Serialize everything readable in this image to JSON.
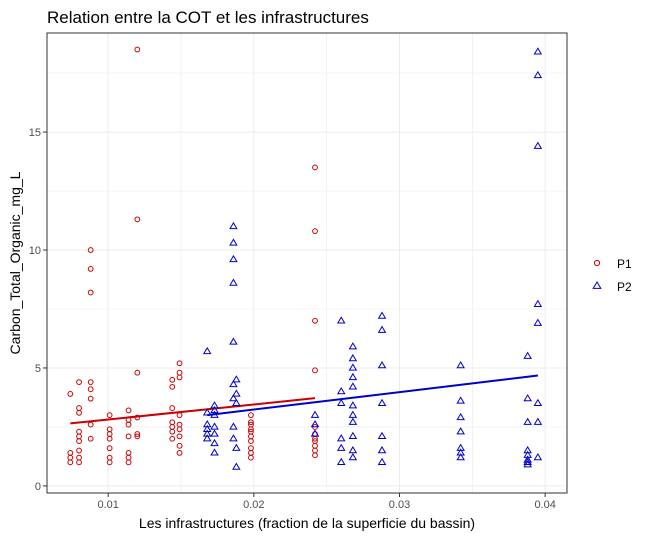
{
  "chart_data": {
    "type": "scatter",
    "title": "Relation entre la COT et les infrastructures",
    "xlabel": "Les infrastructures (fraction de la superficie du bassin)",
    "ylabel": "Carbon_Total_Organic_mg_L",
    "xlim": [
      0.0058,
      0.0415
    ],
    "ylim": [
      -0.3,
      19.2
    ],
    "x_ticks": [
      0.01,
      0.02,
      0.03,
      0.04
    ],
    "x_tick_labels": [
      "0.01",
      "0.02",
      "0.03",
      "0.04"
    ],
    "y_ticks": [
      0,
      5,
      10,
      15
    ],
    "y_tick_labels": [
      "0",
      "5",
      "10",
      "15"
    ],
    "grid": true,
    "legend_position": "right",
    "series": [
      {
        "name": "P1",
        "marker": "circle",
        "color": "#cc0000",
        "points": [
          [
            0.0074,
            1.0
          ],
          [
            0.0074,
            1.2
          ],
          [
            0.0074,
            1.4
          ],
          [
            0.0074,
            3.9
          ],
          [
            0.008,
            1.0
          ],
          [
            0.008,
            1.2
          ],
          [
            0.008,
            1.5
          ],
          [
            0.008,
            1.9
          ],
          [
            0.008,
            2.1
          ],
          [
            0.008,
            2.3
          ],
          [
            0.008,
            3.1
          ],
          [
            0.008,
            3.3
          ],
          [
            0.008,
            4.4
          ],
          [
            0.0088,
            2.0
          ],
          [
            0.0088,
            2.6
          ],
          [
            0.0088,
            3.7
          ],
          [
            0.0088,
            4.1
          ],
          [
            0.0088,
            4.4
          ],
          [
            0.0088,
            8.2
          ],
          [
            0.0088,
            9.2
          ],
          [
            0.0088,
            10.0
          ],
          [
            0.0101,
            1.0
          ],
          [
            0.0101,
            1.2
          ],
          [
            0.0101,
            1.6
          ],
          [
            0.0101,
            2.0
          ],
          [
            0.0101,
            2.2
          ],
          [
            0.0101,
            2.4
          ],
          [
            0.0101,
            3.0
          ],
          [
            0.0114,
            1.0
          ],
          [
            0.0114,
            1.2
          ],
          [
            0.0114,
            1.4
          ],
          [
            0.0114,
            2.1
          ],
          [
            0.0114,
            2.6
          ],
          [
            0.0114,
            2.8
          ],
          [
            0.0114,
            3.2
          ],
          [
            0.012,
            2.1
          ],
          [
            0.012,
            2.2
          ],
          [
            0.012,
            2.9
          ],
          [
            0.012,
            4.8
          ],
          [
            0.012,
            11.3
          ],
          [
            0.012,
            18.5
          ],
          [
            0.0144,
            2.0
          ],
          [
            0.0144,
            2.3
          ],
          [
            0.0144,
            2.5
          ],
          [
            0.0144,
            2.7
          ],
          [
            0.0144,
            3.3
          ],
          [
            0.0144,
            4.2
          ],
          [
            0.0144,
            4.5
          ],
          [
            0.0149,
            1.4
          ],
          [
            0.0149,
            1.7
          ],
          [
            0.0149,
            2.1
          ],
          [
            0.0149,
            2.4
          ],
          [
            0.0149,
            2.6
          ],
          [
            0.0149,
            3.0
          ],
          [
            0.0149,
            4.6
          ],
          [
            0.0149,
            4.8
          ],
          [
            0.0149,
            5.2
          ],
          [
            0.0198,
            1.2
          ],
          [
            0.0198,
            1.4
          ],
          [
            0.0198,
            1.6
          ],
          [
            0.0198,
            1.9
          ],
          [
            0.0198,
            2.1
          ],
          [
            0.0198,
            2.3
          ],
          [
            0.0198,
            2.4
          ],
          [
            0.0198,
            2.6
          ],
          [
            0.0198,
            2.7
          ],
          [
            0.0198,
            3.0
          ],
          [
            0.0242,
            1.3
          ],
          [
            0.0242,
            1.5
          ],
          [
            0.0242,
            1.7
          ],
          [
            0.0242,
            1.9
          ],
          [
            0.0242,
            2.0
          ],
          [
            0.0242,
            2.2
          ],
          [
            0.0242,
            2.5
          ],
          [
            0.0242,
            4.9
          ],
          [
            0.0242,
            7.0
          ],
          [
            0.0242,
            10.8
          ],
          [
            0.0242,
            13.5
          ]
        ],
        "trend": [
          [
            0.0074,
            2.65
          ],
          [
            0.0242,
            3.72
          ]
        ]
      },
      {
        "name": "P2",
        "marker": "triangle",
        "color": "#0000cc",
        "points": [
          [
            0.0168,
            2.0
          ],
          [
            0.0168,
            2.2
          ],
          [
            0.0168,
            2.4
          ],
          [
            0.0168,
            2.6
          ],
          [
            0.0168,
            3.1
          ],
          [
            0.0168,
            5.7
          ],
          [
            0.0173,
            1.4
          ],
          [
            0.0173,
            1.8
          ],
          [
            0.0173,
            2.2
          ],
          [
            0.0173,
            2.5
          ],
          [
            0.0173,
            3.0
          ],
          [
            0.0173,
            3.2
          ],
          [
            0.0173,
            3.4
          ],
          [
            0.0186,
            2.0
          ],
          [
            0.0186,
            2.5
          ],
          [
            0.0186,
            3.7
          ],
          [
            0.0186,
            4.3
          ],
          [
            0.0186,
            6.1
          ],
          [
            0.0186,
            8.6
          ],
          [
            0.0186,
            9.6
          ],
          [
            0.0186,
            10.3
          ],
          [
            0.0186,
            11.0
          ],
          [
            0.0188,
            0.8
          ],
          [
            0.0188,
            1.6
          ],
          [
            0.0188,
            3.5
          ],
          [
            0.0188,
            3.9
          ],
          [
            0.0188,
            4.5
          ],
          [
            0.0242,
            2.2
          ],
          [
            0.0242,
            2.6
          ],
          [
            0.0242,
            3.0
          ],
          [
            0.026,
            1.0
          ],
          [
            0.026,
            1.6
          ],
          [
            0.026,
            2.0
          ],
          [
            0.026,
            3.5
          ],
          [
            0.026,
            4.0
          ],
          [
            0.026,
            7.0
          ],
          [
            0.0268,
            1.2
          ],
          [
            0.0268,
            1.5
          ],
          [
            0.0268,
            2.1
          ],
          [
            0.0268,
            2.7
          ],
          [
            0.0268,
            3.0
          ],
          [
            0.0268,
            3.4
          ],
          [
            0.0268,
            4.2
          ],
          [
            0.0268,
            4.6
          ],
          [
            0.0268,
            5.0
          ],
          [
            0.0268,
            5.4
          ],
          [
            0.0268,
            5.9
          ],
          [
            0.0288,
            1.0
          ],
          [
            0.0288,
            1.5
          ],
          [
            0.0288,
            2.1
          ],
          [
            0.0288,
            3.5
          ],
          [
            0.0288,
            5.1
          ],
          [
            0.0288,
            6.6
          ],
          [
            0.0288,
            7.2
          ],
          [
            0.0342,
            1.2
          ],
          [
            0.0342,
            1.4
          ],
          [
            0.0342,
            1.6
          ],
          [
            0.0342,
            2.3
          ],
          [
            0.0342,
            2.9
          ],
          [
            0.0342,
            3.6
          ],
          [
            0.0342,
            5.1
          ],
          [
            0.0388,
            0.9
          ],
          [
            0.0388,
            1.0
          ],
          [
            0.0388,
            1.1
          ],
          [
            0.0388,
            1.3
          ],
          [
            0.0388,
            1.5
          ],
          [
            0.0388,
            2.7
          ],
          [
            0.0388,
            3.7
          ],
          [
            0.0388,
            5.5
          ],
          [
            0.0395,
            1.2
          ],
          [
            0.0395,
            2.7
          ],
          [
            0.0395,
            3.5
          ],
          [
            0.0395,
            6.9
          ],
          [
            0.0395,
            7.7
          ],
          [
            0.0395,
            14.4
          ],
          [
            0.0395,
            17.4
          ],
          [
            0.0395,
            18.4
          ]
        ],
        "trend": [
          [
            0.0168,
            3.0
          ],
          [
            0.0395,
            4.68
          ]
        ]
      }
    ]
  }
}
